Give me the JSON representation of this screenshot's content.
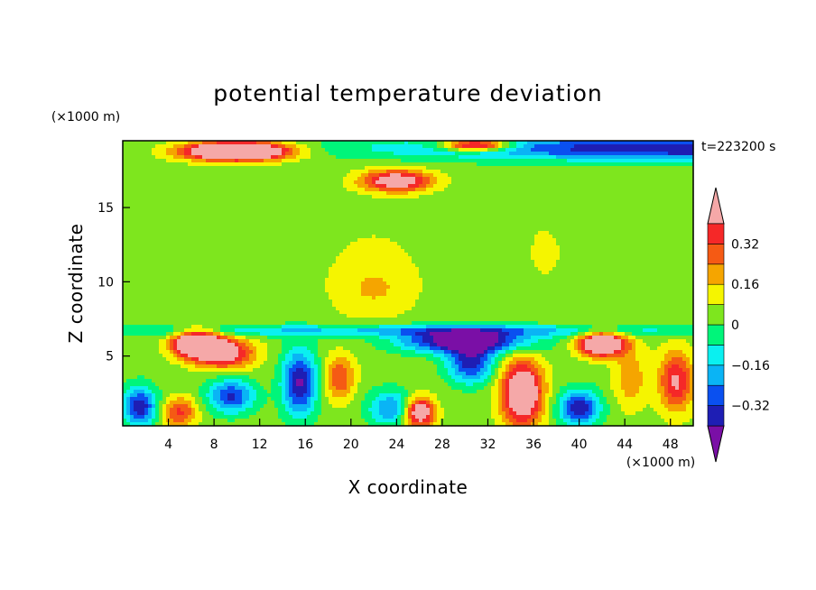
{
  "chart_data": {
    "type": "heatmap",
    "title": "potential temperature deviation",
    "xlabel": "X coordinate",
    "ylabel": "Z coordinate",
    "x_unit": "(×1000 m)",
    "y_unit": "(×1000 m)",
    "time_label": "t=223200 s",
    "xlim": [
      0,
      50
    ],
    "ylim": [
      0.3,
      19.5
    ],
    "x_ticks": [
      4,
      8,
      12,
      16,
      20,
      24,
      28,
      32,
      36,
      40,
      44,
      48
    ],
    "y_ticks": [
      5,
      10,
      15
    ],
    "grid": false,
    "colorbar": {
      "position": "right",
      "levels": [
        -0.4,
        -0.32,
        -0.24,
        -0.16,
        -0.08,
        0,
        0.08,
        0.16,
        0.24,
        0.32,
        0.4
      ],
      "colors": [
        "#7a0fa6",
        "#1e1eb4",
        "#0a50f0",
        "#0ab4f5",
        "#0af0f0",
        "#00f57a",
        "#7ee61e",
        "#f5f500",
        "#f5a500",
        "#f55a14",
        "#f52828",
        "#f5a8a8"
      ],
      "tick_labels": [
        "0.32",
        "0.16",
        "0",
        "−0.16",
        "−0.32"
      ],
      "tick_values": [
        0.32,
        0.16,
        0,
        -0.16,
        -0.32
      ],
      "extend": "both"
    },
    "background_value": 0.04,
    "features": [
      {
        "x": 50,
        "z": 19.0,
        "sx": 25,
        "sz": 0.8,
        "value": -0.44
      },
      {
        "x": 10,
        "z": 18.8,
        "sx": 4.5,
        "sz": 0.6,
        "value": 0.9
      },
      {
        "x": 31,
        "z": 19.2,
        "sx": 3,
        "sz": 0.4,
        "value": 0.6
      },
      {
        "x": 24,
        "z": 16.8,
        "sx": 3,
        "sz": 0.7,
        "value": 0.5
      },
      {
        "x": 22,
        "z": 10.5,
        "sx": 5,
        "sz": 4,
        "value": 0.06
      },
      {
        "x": 22,
        "z": 9.5,
        "sx": 3,
        "sz": 1.5,
        "value": 0.08
      },
      {
        "x": 37,
        "z": 12,
        "sx": 2.5,
        "sz": 3,
        "value": 0.05
      },
      {
        "x": 25,
        "z": 6.7,
        "sx": 30,
        "sz": 0.4,
        "value": -0.22
      },
      {
        "x": 30,
        "z": 6.0,
        "sx": 5.5,
        "sz": 0.8,
        "value": -0.55
      },
      {
        "x": 30.5,
        "z": 4.5,
        "sx": 2,
        "sz": 1.3,
        "value": -0.4
      },
      {
        "x": 6.5,
        "z": 5.8,
        "sx": 2,
        "sz": 0.9,
        "value": 0.75
      },
      {
        "x": 9,
        "z": 5.2,
        "sx": 2.5,
        "sz": 1.0,
        "value": 0.45
      },
      {
        "x": 42,
        "z": 5.8,
        "sx": 2,
        "sz": 0.8,
        "value": 0.7
      },
      {
        "x": 1.5,
        "z": 1.6,
        "sx": 1.5,
        "sz": 1.3,
        "value": -0.42
      },
      {
        "x": 5,
        "z": 1.2,
        "sx": 1.5,
        "sz": 1.0,
        "value": 0.3
      },
      {
        "x": 9.5,
        "z": 2.3,
        "sx": 2,
        "sz": 1.1,
        "value": -0.38
      },
      {
        "x": 15.5,
        "z": 3.2,
        "sx": 1.5,
        "sz": 2.2,
        "value": -0.45
      },
      {
        "x": 19,
        "z": 3.5,
        "sx": 1.3,
        "sz": 1.5,
        "value": 0.28
      },
      {
        "x": 23.5,
        "z": 1.5,
        "sx": 2,
        "sz": 1.2,
        "value": -0.28
      },
      {
        "x": 26,
        "z": 1.2,
        "sx": 1.3,
        "sz": 1.0,
        "value": 0.55
      },
      {
        "x": 35,
        "z": 2.5,
        "sx": 1.8,
        "sz": 2.2,
        "value": 0.6
      },
      {
        "x": 40,
        "z": 1.5,
        "sx": 1.8,
        "sz": 1.2,
        "value": -0.42
      },
      {
        "x": 44.5,
        "z": 3.5,
        "sx": 1.5,
        "sz": 2.0,
        "value": 0.18
      },
      {
        "x": 48.5,
        "z": 3.3,
        "sx": 1.5,
        "sz": 2.0,
        "value": 0.38
      }
    ]
  }
}
